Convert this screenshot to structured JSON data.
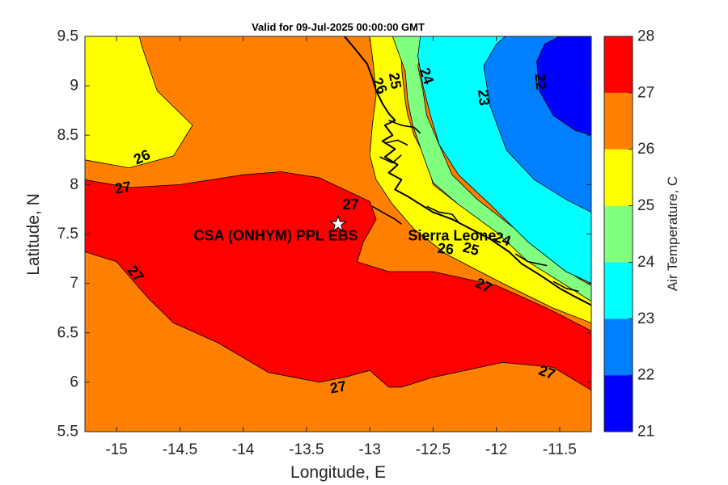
{
  "chart_data": {
    "type": "heatmap",
    "subtype": "filled-contour-map",
    "title": "Valid for 09-Jul-2025 00:00:00 GMT",
    "xlabel": "Longitude, E",
    "ylabel": "Latitude, N",
    "xlim": [
      -15.25,
      -11.25
    ],
    "ylim": [
      5.5,
      9.5
    ],
    "xticks": [
      -15,
      -14.5,
      -14,
      -13.5,
      -13,
      -12.5,
      -12,
      -11.5
    ],
    "yticks": [
      5.5,
      6,
      6.5,
      7,
      7.5,
      8,
      8.5,
      9,
      9.5
    ],
    "xtick_labels": [
      "-15",
      "-14.5",
      "-14",
      "-13.5",
      "-13",
      "-12.5",
      "-12",
      "-11.5"
    ],
    "ytick_labels": [
      "5.5",
      "6",
      "6.5",
      "7",
      "7.5",
      "8",
      "8.5",
      "9",
      "9.5"
    ],
    "grid": false,
    "colorbar": {
      "label": "Air Temperature, C",
      "levels": [
        21,
        22,
        23,
        24,
        25,
        26,
        27,
        28
      ],
      "tick_labels": [
        "21",
        "22",
        "23",
        "24",
        "25",
        "26",
        "27",
        "28"
      ],
      "colors": [
        "#0000ff",
        "#0080ff",
        "#00ffff",
        "#80ff80",
        "#ffff00",
        "#ff8000",
        "#ff0000",
        "#800000"
      ]
    },
    "regions": [
      {
        "range": [
          26,
          27
        ],
        "polygon": [
          [
            -15.25,
            9.5
          ],
          [
            -12.9,
            9.5
          ],
          [
            -12.9,
            8.8
          ],
          [
            -12.95,
            8.4
          ],
          [
            -12.95,
            8.15
          ],
          [
            -12.9,
            8.0
          ],
          [
            -12.8,
            7.9
          ],
          [
            -12.6,
            7.6
          ],
          [
            -12.0,
            7.1
          ],
          [
            -11.6,
            6.85
          ],
          [
            -11.25,
            6.7
          ],
          [
            -11.25,
            5.5
          ],
          [
            -15.25,
            5.5
          ]
        ]
      },
      {
        "range": [
          25,
          26
        ],
        "polygon": [
          [
            -15.25,
            9.5
          ],
          [
            -15.25,
            8.25
          ],
          [
            -14.9,
            8.17
          ],
          [
            -14.55,
            8.29
          ],
          [
            -14.4,
            8.6
          ],
          [
            -14.68,
            8.95
          ],
          [
            -14.8,
            9.4
          ],
          [
            -14.82,
            9.5
          ]
        ]
      },
      {
        "range": [
          25,
          26
        ],
        "polygon": [
          [
            -13.0,
            9.5
          ],
          [
            -12.75,
            9.5
          ],
          [
            -12.75,
            9.2
          ],
          [
            -12.72,
            8.85
          ],
          [
            -12.7,
            8.7
          ],
          [
            -12.65,
            8.5
          ],
          [
            -12.55,
            8.25
          ],
          [
            -12.5,
            8.0
          ],
          [
            -12.3,
            7.8
          ],
          [
            -12.0,
            7.55
          ],
          [
            -11.7,
            7.2
          ],
          [
            -11.4,
            6.95
          ],
          [
            -11.25,
            6.85
          ],
          [
            -11.25,
            6.6
          ],
          [
            -11.55,
            6.75
          ],
          [
            -11.95,
            7.0
          ],
          [
            -12.4,
            7.3
          ],
          [
            -12.65,
            7.55
          ],
          [
            -12.82,
            7.8
          ],
          [
            -12.95,
            8.05
          ],
          [
            -13.0,
            8.3
          ],
          [
            -12.98,
            8.6
          ],
          [
            -12.95,
            8.9
          ],
          [
            -12.97,
            9.2
          ]
        ]
      },
      {
        "range": [
          24,
          25
        ],
        "polygon": [
          [
            -12.82,
            9.5
          ],
          [
            -12.55,
            9.5
          ],
          [
            -12.62,
            9.2
          ],
          [
            -12.58,
            8.95
          ],
          [
            -12.55,
            8.7
          ],
          [
            -12.45,
            8.4
          ],
          [
            -12.35,
            8.1
          ],
          [
            -12.15,
            7.85
          ],
          [
            -11.85,
            7.55
          ],
          [
            -11.6,
            7.28
          ],
          [
            -11.35,
            7.05
          ],
          [
            -11.25,
            6.98
          ],
          [
            -11.25,
            6.82
          ],
          [
            -11.45,
            6.98
          ],
          [
            -11.75,
            7.22
          ],
          [
            -12.0,
            7.52
          ],
          [
            -12.3,
            7.8
          ],
          [
            -12.5,
            8.02
          ],
          [
            -12.58,
            8.3
          ],
          [
            -12.66,
            8.6
          ],
          [
            -12.7,
            8.85
          ],
          [
            -12.72,
            9.15
          ]
        ]
      },
      {
        "range": [
          23,
          24
        ],
        "polygon": [
          [
            -12.6,
            9.5
          ],
          [
            -11.25,
            9.5
          ],
          [
            -11.25,
            7.0
          ],
          [
            -11.45,
            7.12
          ],
          [
            -11.75,
            7.42
          ],
          [
            -12.05,
            7.8
          ],
          [
            -12.3,
            8.1
          ],
          [
            -12.45,
            8.4
          ],
          [
            -12.52,
            8.7
          ],
          [
            -12.58,
            9.0
          ],
          [
            -12.62,
            9.3
          ]
        ]
      },
      {
        "range": [
          22,
          23
        ],
        "polygon": [
          [
            -11.93,
            9.5
          ],
          [
            -11.25,
            9.5
          ],
          [
            -11.25,
            7.72
          ],
          [
            -11.45,
            7.85
          ],
          [
            -11.7,
            8.05
          ],
          [
            -11.92,
            8.35
          ],
          [
            -12.05,
            8.8
          ],
          [
            -12.1,
            9.2
          ],
          [
            -12.0,
            9.42
          ]
        ]
      },
      {
        "range": [
          21,
          22
        ],
        "polygon": [
          [
            -11.5,
            9.5
          ],
          [
            -11.25,
            9.5
          ],
          [
            -11.25,
            8.5
          ],
          [
            -11.38,
            8.55
          ],
          [
            -11.55,
            8.7
          ],
          [
            -11.66,
            8.95
          ],
          [
            -11.68,
            9.25
          ],
          [
            -11.62,
            9.42
          ]
        ]
      },
      {
        "range": [
          27,
          28
        ],
        "polygon": [
          [
            -15.25,
            7.32
          ],
          [
            -15.25,
            8.05
          ],
          [
            -14.9,
            7.97
          ],
          [
            -14.5,
            8.0
          ],
          [
            -14.0,
            8.1
          ],
          [
            -13.7,
            8.13
          ],
          [
            -13.4,
            8.07
          ],
          [
            -13.2,
            7.95
          ],
          [
            -13.0,
            7.83
          ],
          [
            -12.95,
            7.65
          ],
          [
            -13.05,
            7.42
          ],
          [
            -13.1,
            7.22
          ],
          [
            -12.85,
            7.12
          ],
          [
            -12.5,
            7.12
          ],
          [
            -12.0,
            6.98
          ],
          [
            -11.6,
            6.75
          ],
          [
            -11.25,
            6.52
          ],
          [
            -11.25,
            5.92
          ],
          [
            -11.55,
            6.15
          ],
          [
            -11.95,
            6.2
          ],
          [
            -12.5,
            6.05
          ],
          [
            -12.75,
            5.95
          ],
          [
            -12.85,
            5.95
          ],
          [
            -13.0,
            6.12
          ],
          [
            -13.2,
            6.05
          ],
          [
            -13.4,
            6.0
          ],
          [
            -13.8,
            6.1
          ],
          [
            -14.2,
            6.4
          ],
          [
            -14.55,
            6.6
          ],
          [
            -14.75,
            6.85
          ],
          [
            -15.0,
            7.22
          ]
        ]
      }
    ],
    "contour_labels": [
      {
        "text": "26",
        "lon": -14.8,
        "lat": 8.28,
        "angle": -25
      },
      {
        "text": "27",
        "lon": -14.95,
        "lat": 7.97,
        "angle": -10
      },
      {
        "text": "27",
        "lon": -14.85,
        "lat": 7.1,
        "angle": 50
      },
      {
        "text": "27",
        "lon": -13.15,
        "lat": 7.8,
        "angle": 0
      },
      {
        "text": "27",
        "lon": -12.1,
        "lat": 6.98,
        "angle": 25
      },
      {
        "text": "27",
        "lon": -11.6,
        "lat": 6.1,
        "angle": 20
      },
      {
        "text": "27",
        "lon": -13.25,
        "lat": 5.95,
        "angle": -10
      },
      {
        "text": "26",
        "lon": -12.92,
        "lat": 9.0,
        "angle": 65
      },
      {
        "text": "25",
        "lon": -12.8,
        "lat": 9.05,
        "angle": 80
      },
      {
        "text": "24",
        "lon": -12.55,
        "lat": 9.1,
        "angle": 70
      },
      {
        "text": "23",
        "lon": -12.1,
        "lat": 8.88,
        "angle": 85
      },
      {
        "text": "22",
        "lon": -11.65,
        "lat": 9.04,
        "angle": 85
      },
      {
        "text": "26",
        "lon": -12.4,
        "lat": 7.35,
        "angle": 5
      },
      {
        "text": "25",
        "lon": -12.2,
        "lat": 7.35,
        "angle": 15
      },
      {
        "text": "24",
        "lon": -11.95,
        "lat": 7.45,
        "angle": 20
      }
    ],
    "station": {
      "name": "CSA (ONHYM) PPL EBS",
      "lon": -13.25,
      "lat": 7.6,
      "marker": "white-star"
    },
    "annotations": [
      {
        "text": "Sierra Leone",
        "lon": -12.35,
        "lat": 7.5
      }
    ],
    "coastline": [
      [
        -13.2,
        9.5
      ],
      [
        -13.12,
        9.38
      ],
      [
        -13.02,
        9.22
      ],
      [
        -12.98,
        9.08
      ],
      [
        -12.95,
        8.95
      ],
      [
        -12.9,
        8.82
      ],
      [
        -12.85,
        8.72
      ],
      [
        -12.8,
        8.65
      ],
      [
        -12.88,
        8.6
      ],
      [
        -12.82,
        8.5
      ],
      [
        -12.9,
        8.44
      ],
      [
        -12.8,
        8.36
      ],
      [
        -12.88,
        8.28
      ],
      [
        -12.78,
        8.2
      ],
      [
        -12.85,
        8.12
      ],
      [
        -12.75,
        8.05
      ],
      [
        -12.8,
        7.95
      ],
      [
        -12.7,
        7.88
      ],
      [
        -12.6,
        7.8
      ],
      [
        -12.5,
        7.72
      ],
      [
        -12.35,
        7.65
      ],
      [
        -12.2,
        7.55
      ],
      [
        -12.05,
        7.45
      ],
      [
        -11.9,
        7.32
      ],
      [
        -11.8,
        7.2
      ],
      [
        -11.65,
        7.08
      ],
      [
        -11.5,
        6.95
      ],
      [
        -11.4,
        6.88
      ],
      [
        -11.25,
        6.78
      ]
    ],
    "inland_rivers": [
      [
        [
          -12.85,
          8.65
        ],
        [
          -12.75,
          8.6
        ],
        [
          -12.65,
          8.58
        ],
        [
          -12.6,
          8.52
        ]
      ],
      [
        [
          -12.88,
          8.42
        ],
        [
          -12.78,
          8.45
        ],
        [
          -12.7,
          8.4
        ]
      ],
      [
        [
          -12.92,
          8.28
        ],
        [
          -12.82,
          8.22
        ],
        [
          -12.75,
          8.3
        ]
      ],
      [
        [
          -12.98,
          7.78
        ],
        [
          -12.9,
          7.72
        ],
        [
          -12.8,
          7.65
        ],
        [
          -12.75,
          7.6
        ]
      ],
      [
        [
          -12.55,
          7.78
        ],
        [
          -12.45,
          7.72
        ],
        [
          -12.35,
          7.7
        ],
        [
          -12.3,
          7.62
        ]
      ],
      [
        [
          -11.85,
          7.3
        ],
        [
          -11.75,
          7.22
        ],
        [
          -11.6,
          7.18
        ]
      ],
      [
        [
          -11.55,
          7.02
        ],
        [
          -11.45,
          6.95
        ],
        [
          -11.35,
          6.92
        ]
      ]
    ]
  }
}
